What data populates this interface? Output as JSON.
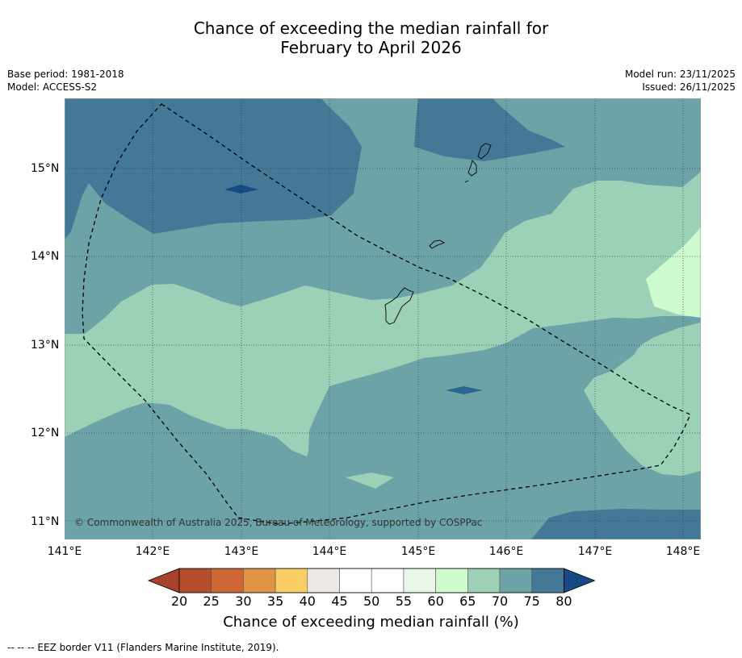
{
  "title": {
    "line1": "Chance of exceeding the median rainfall for",
    "line2": "February to April 2026"
  },
  "meta": {
    "base_period": "Base period: 1981-2018",
    "model": "Model: ACCESS-S2",
    "model_run": "Model run: 23/11/2025",
    "issued": "Issued: 26/11/2025"
  },
  "map": {
    "lon_ticks": [
      "141°E",
      "142°E",
      "143°E",
      "144°E",
      "145°E",
      "146°E",
      "147°E",
      "148°E"
    ],
    "lat_ticks": [
      "15°N",
      "14°N",
      "13°N",
      "12°N",
      "11°N"
    ],
    "lon_range": [
      141.0,
      148.2
    ],
    "lat_range": [
      10.8,
      15.8
    ],
    "copyright": "© Commonwealth of Australia 2025, Bureau of Meteorology, supported by COSPPac"
  },
  "colorbar": {
    "levels": [
      "20",
      "25",
      "30",
      "35",
      "40",
      "45",
      "50",
      "55",
      "60",
      "65",
      "70",
      "75",
      "80"
    ],
    "colors": {
      "below_20": "#a6432a",
      "20_25": "#b54d2a",
      "25_30": "#cd6734",
      "30_35": "#e09448",
      "35_40": "#fbcd66",
      "40_45": "#ede8e4",
      "45_50": "#ffffff",
      "50_55": "#ffffff",
      "55_60": "#e8f6e8",
      "60_65": "#cdfbcd",
      "65_70": "#9cd1b7",
      "70_75": "#6ca3a6",
      "75_80": "#437996",
      "above_80": "#154a86"
    },
    "label": "Chance of exceeding median rainfall (%)"
  },
  "footnote": "--  --  -- EEZ border V11 (Flanders Marine Institute, 2019)."
}
